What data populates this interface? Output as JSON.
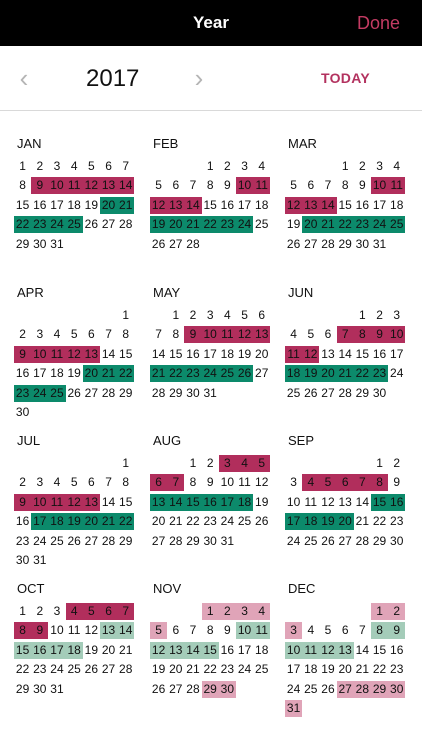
{
  "header": {
    "title": "Year",
    "done_label": "Done"
  },
  "nav": {
    "year": "2017",
    "today_label": "TODAY",
    "prev_icon": "chevron-left-icon",
    "next_icon": "chevron-right-icon"
  },
  "colors": {
    "c1": "#b12e5c",
    "c2": "#0c8a6b",
    "c3": "#e0a4b8",
    "c4": "#a4ccb9"
  },
  "months": [
    {
      "name": "JAN",
      "first_weekday": 0,
      "days": 31,
      "ranges": [
        [
          9,
          14,
          "c1"
        ],
        [
          20,
          21,
          "c2"
        ],
        [
          22,
          25,
          "c2"
        ]
      ]
    },
    {
      "name": "FEB",
      "first_weekday": 3,
      "days": 28,
      "ranges": [
        [
          10,
          11,
          "c1"
        ],
        [
          12,
          14,
          "c1"
        ],
        [
          19,
          24,
          "c2"
        ]
      ]
    },
    {
      "name": "MAR",
      "first_weekday": 3,
      "days": 31,
      "ranges": [
        [
          10,
          11,
          "c1"
        ],
        [
          12,
          14,
          "c1"
        ],
        [
          20,
          25,
          "c2"
        ]
      ]
    },
    {
      "name": "APR",
      "first_weekday": 6,
      "days": 30,
      "ranges": [
        [
          9,
          13,
          "c1"
        ],
        [
          20,
          22,
          "c2"
        ],
        [
          23,
          25,
          "c2"
        ]
      ]
    },
    {
      "name": "MAY",
      "first_weekday": 1,
      "days": 31,
      "ranges": [
        [
          9,
          13,
          "c1"
        ],
        [
          21,
          26,
          "c2"
        ]
      ]
    },
    {
      "name": "JUN",
      "first_weekday": 4,
      "days": 30,
      "ranges": [
        [
          7,
          10,
          "c1"
        ],
        [
          11,
          12,
          "c1"
        ],
        [
          18,
          23,
          "c2"
        ]
      ]
    },
    {
      "name": "JUL",
      "first_weekday": 6,
      "days": 31,
      "ranges": [
        [
          9,
          13,
          "c1"
        ],
        [
          17,
          22,
          "c2"
        ]
      ]
    },
    {
      "name": "AUG",
      "first_weekday": 2,
      "days": 31,
      "ranges": [
        [
          3,
          5,
          "c1"
        ],
        [
          6,
          7,
          "c1"
        ],
        [
          13,
          18,
          "c2"
        ]
      ]
    },
    {
      "name": "SEP",
      "first_weekday": 5,
      "days": 30,
      "ranges": [
        [
          4,
          8,
          "c1"
        ],
        [
          15,
          16,
          "c2"
        ],
        [
          17,
          20,
          "c2"
        ]
      ]
    },
    {
      "name": "OCT",
      "first_weekday": 0,
      "days": 31,
      "ranges": [
        [
          4,
          7,
          "c1"
        ],
        [
          8,
          9,
          "c1"
        ],
        [
          13,
          14,
          "c4"
        ],
        [
          15,
          18,
          "c4"
        ]
      ]
    },
    {
      "name": "NOV",
      "first_weekday": 3,
      "days": 30,
      "ranges": [
        [
          1,
          4,
          "c3"
        ],
        [
          5,
          5,
          "c3"
        ],
        [
          10,
          11,
          "c4"
        ],
        [
          12,
          15,
          "c4"
        ],
        [
          29,
          30,
          "c3"
        ]
      ]
    },
    {
      "name": "DEC",
      "first_weekday": 5,
      "days": 31,
      "ranges": [
        [
          1,
          2,
          "c3"
        ],
        [
          3,
          3,
          "c3"
        ],
        [
          8,
          9,
          "c4"
        ],
        [
          10,
          13,
          "c4"
        ],
        [
          27,
          30,
          "c3"
        ],
        [
          31,
          31,
          "c3"
        ]
      ]
    }
  ]
}
